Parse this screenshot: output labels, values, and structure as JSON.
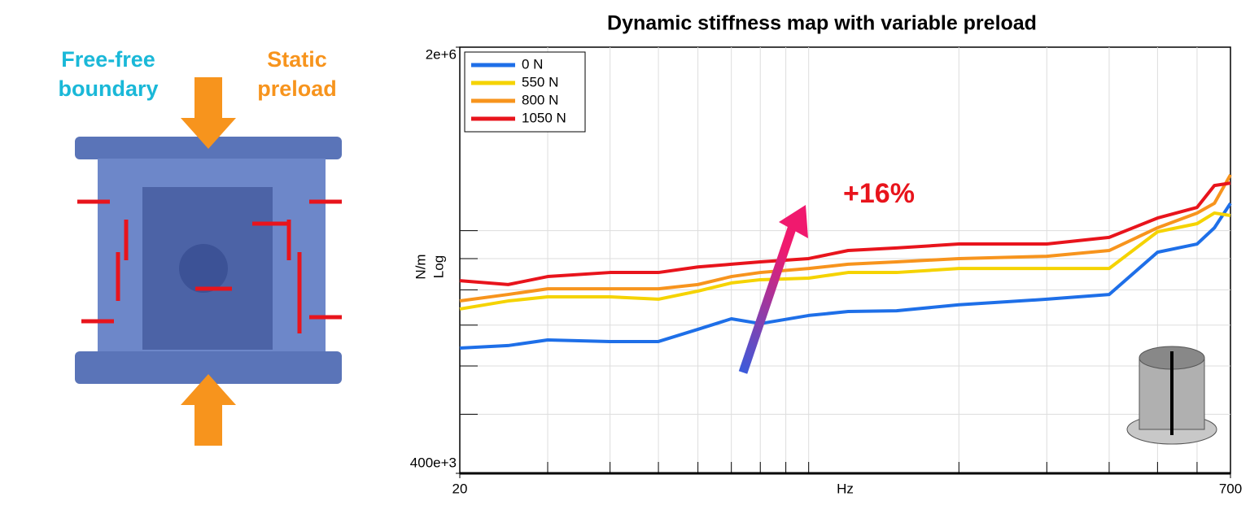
{
  "illustration": {
    "left_label": [
      "Free-free",
      "boundary"
    ],
    "right_label": [
      "Static",
      "preload"
    ]
  },
  "chart_data": {
    "type": "line",
    "title": "Dynamic stiffness map with variable preload",
    "x": [
      20,
      25,
      30,
      40,
      50,
      60,
      70,
      80,
      100,
      120,
      150,
      200,
      300,
      400,
      500,
      600,
      650,
      700
    ],
    "series": [
      {
        "name": "0 N",
        "color": "#1e6fe8",
        "values": [
          642000,
          648000,
          662000,
          658000,
          658000,
          689000,
          717000,
          704000,
          726000,
          737000,
          739000,
          756000,
          772000,
          786000,
          922000,
          951000,
          1011000,
          1109000
        ]
      },
      {
        "name": "550 N",
        "color": "#f5d300",
        "values": [
          744000,
          767000,
          779000,
          779000,
          772000,
          796000,
          821000,
          831000,
          836000,
          854000,
          854000,
          867000,
          867000,
          867000,
          996000,
          1027000,
          1069000,
          1059000
        ]
      },
      {
        "name": "800 N",
        "color": "#f7941d",
        "values": [
          767000,
          786000,
          803000,
          803000,
          803000,
          816000,
          841000,
          854000,
          867000,
          881000,
          889000,
          900000,
          908000,
          928000,
          1011000,
          1069000,
          1109000,
          1235000
        ]
      },
      {
        "name": "1050 N",
        "color": "#e8141c",
        "values": [
          828000,
          816000,
          841000,
          854000,
          854000,
          872000,
          881000,
          889000,
          900000,
          928000,
          937000,
          951000,
          951000,
          975000,
          1049000,
          1092000,
          1186000,
          1197000
        ]
      }
    ],
    "xlim": [
      20,
      700
    ],
    "ylim": [
      400000,
      2000000
    ],
    "xticks": [
      20,
      700
    ],
    "yticks": [
      {
        "value": 400000,
        "label": "400e+3"
      },
      {
        "value": 2000000,
        "label": "2e+6"
      }
    ],
    "xlabel": "Hz",
    "ylabel": [
      "N/m",
      "Log"
    ],
    "xscale": "log",
    "yscale": "log",
    "grid": true,
    "legend": "upper left",
    "annotation": "+16%"
  }
}
